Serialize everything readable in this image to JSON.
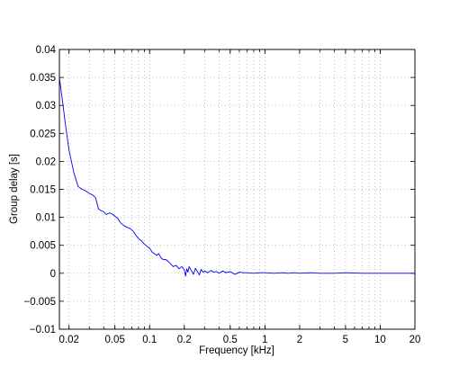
{
  "chart_data": {
    "type": "line",
    "title": "",
    "xlabel": "Frequency [kHz]",
    "ylabel": "Group delay [s]",
    "xscale": "log",
    "xlim": [
      0.0165,
      20
    ],
    "ylim": [
      -0.01,
      0.04
    ],
    "grid": true,
    "legend": "none",
    "line_color": "#0000ff",
    "x_tick_values": [
      0.02,
      0.05,
      0.1,
      0.2,
      0.5,
      1,
      2,
      5,
      10,
      20
    ],
    "x_tick_labels": [
      "0.02",
      "0.05",
      "0.1",
      "0.2",
      "0.5",
      "1",
      "2",
      "5",
      "10",
      "20"
    ],
    "y_tick_values": [
      -0.01,
      -0.005,
      0,
      0.005,
      0.01,
      0.015,
      0.02,
      0.025,
      0.03,
      0.035,
      0.04
    ],
    "y_tick_labels": [
      "−0.01",
      "−0.005",
      "0",
      "0.005",
      "0.01",
      "0.015",
      "0.02",
      "0.025",
      "0.03",
      "0.035",
      "0.04"
    ],
    "series": [
      {
        "x": [
          0.0165,
          0.0175,
          0.0185,
          0.02,
          0.022,
          0.024,
          0.026,
          0.028,
          0.03,
          0.032,
          0.034,
          0.036,
          0.038,
          0.04,
          0.042,
          0.045,
          0.048,
          0.05,
          0.053,
          0.056,
          0.06,
          0.064,
          0.068,
          0.072,
          0.076,
          0.08,
          0.085,
          0.09,
          0.095,
          0.1,
          0.105,
          0.11,
          0.115,
          0.12,
          0.125,
          0.13,
          0.14,
          0.15,
          0.16,
          0.17,
          0.18,
          0.19,
          0.2,
          0.205,
          0.21,
          0.215,
          0.22,
          0.23,
          0.24,
          0.25,
          0.26,
          0.27,
          0.28,
          0.29,
          0.3,
          0.32,
          0.34,
          0.36,
          0.38,
          0.4,
          0.43,
          0.46,
          0.5,
          0.55,
          0.6,
          0.65,
          0.7,
          0.8,
          0.9,
          1.0,
          1.2,
          1.4,
          1.6,
          1.8,
          2.0,
          2.5,
          3,
          4,
          5,
          7,
          10,
          15,
          20
        ],
        "y": [
          0.035,
          0.031,
          0.027,
          0.022,
          0.018,
          0.0155,
          0.015,
          0.0147,
          0.0143,
          0.014,
          0.0135,
          0.0115,
          0.0112,
          0.011,
          0.0105,
          0.0108,
          0.0105,
          0.0102,
          0.0098,
          0.009,
          0.0085,
          0.0082,
          0.008,
          0.0075,
          0.0068,
          0.0062,
          0.0058,
          0.0052,
          0.0048,
          0.0045,
          0.0038,
          0.0035,
          0.0032,
          0.0035,
          0.0028,
          0.0025,
          0.0024,
          0.0018,
          0.0012,
          0.0014,
          0.0008,
          0.0012,
          0.0006,
          -0.0005,
          0.0008,
          0.0002,
          0.0012,
          0.0005,
          -0.0002,
          0.0009,
          0.0003,
          -0.0003,
          0.0007,
          0.0002,
          0.0004,
          0.0001,
          0.0005,
          0.0002,
          0.0003,
          0.0,
          0.0004,
          0.0001,
          0.0003,
          -0.0002,
          0.0002,
          0.0001,
          0.0001,
          0.0,
          0.0001,
          0.0001,
          0.0,
          0.0001,
          0.0,
          0.0001,
          0.0,
          0.0001,
          0.0,
          0.0,
          0.0001,
          0.0,
          0.0,
          0.0,
          0.0
        ]
      }
    ]
  }
}
